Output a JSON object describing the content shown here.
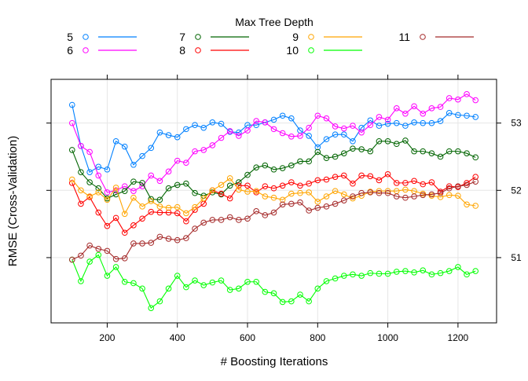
{
  "chart_data": {
    "type": "line",
    "title": "",
    "legend_title": "Max Tree Depth",
    "legend_placement": "top",
    "xlabel": "# Boosting Iterations",
    "ylabel": "RMSE (Cross-Validation)",
    "xlim": [
      40,
      1310
    ],
    "ylim": [
      50.03,
      53.65
    ],
    "x_ticks": [
      200,
      400,
      600,
      800,
      1000,
      1200
    ],
    "y_ticks": [
      51,
      52,
      53
    ],
    "grid": true,
    "x": [
      100,
      125,
      150,
      175,
      200,
      225,
      250,
      275,
      300,
      325,
      350,
      375,
      400,
      425,
      450,
      475,
      500,
      525,
      550,
      575,
      600,
      625,
      650,
      675,
      700,
      725,
      750,
      775,
      800,
      825,
      850,
      875,
      900,
      925,
      950,
      975,
      1000,
      1025,
      1050,
      1075,
      1100,
      1125,
      1150,
      1175,
      1200,
      1225,
      1250
    ],
    "series": [
      {
        "name": "5",
        "color": "#0080ff",
        "values": [
          53.27,
          52.66,
          52.27,
          52.35,
          52.31,
          52.73,
          52.65,
          52.38,
          52.51,
          52.63,
          52.86,
          52.82,
          52.79,
          52.91,
          52.97,
          52.93,
          53.01,
          52.99,
          52.87,
          52.86,
          52.97,
          52.97,
          53.01,
          53.05,
          53.11,
          53.07,
          52.89,
          52.81,
          52.64,
          52.76,
          52.83,
          52.83,
          52.73,
          52.93,
          53.04,
          52.96,
          52.99,
          53.0,
          52.96,
          53.01,
          53.0,
          53.0,
          53.03,
          53.15,
          53.12,
          53.11,
          53.09
        ]
      },
      {
        "name": "6",
        "color": "#ff00ff",
        "values": [
          53.0,
          52.66,
          52.57,
          52.22,
          51.97,
          52.0,
          52.06,
          51.99,
          52.06,
          52.22,
          52.14,
          52.28,
          52.44,
          52.41,
          52.58,
          52.6,
          52.67,
          52.78,
          52.88,
          52.81,
          52.89,
          53.03,
          53.01,
          52.91,
          52.85,
          52.8,
          52.81,
          52.93,
          53.11,
          53.07,
          52.95,
          52.92,
          52.96,
          52.86,
          52.97,
          53.09,
          53.05,
          53.22,
          53.14,
          53.25,
          53.14,
          53.22,
          53.24,
          53.37,
          53.35,
          53.43,
          53.34
        ]
      },
      {
        "name": "7",
        "color": "#006400",
        "values": [
          52.6,
          52.27,
          52.12,
          52.03,
          51.88,
          51.94,
          51.99,
          52.13,
          52.11,
          51.87,
          51.86,
          52.03,
          52.08,
          52.1,
          51.96,
          51.92,
          51.97,
          51.94,
          52.07,
          52.12,
          52.23,
          52.34,
          52.37,
          52.31,
          52.33,
          52.37,
          52.43,
          52.43,
          52.57,
          52.48,
          52.5,
          52.55,
          52.62,
          52.61,
          52.58,
          52.73,
          52.73,
          52.69,
          52.74,
          52.58,
          52.58,
          52.55,
          52.5,
          52.58,
          52.58,
          52.55,
          52.49
        ]
      },
      {
        "name": "8",
        "color": "#ff0000",
        "values": [
          52.11,
          51.8,
          51.9,
          51.67,
          51.47,
          51.59,
          51.37,
          51.48,
          51.58,
          51.68,
          51.67,
          51.67,
          51.66,
          51.54,
          51.71,
          51.8,
          52.0,
          51.95,
          51.88,
          52.07,
          52.07,
          51.97,
          52.06,
          52.03,
          52.07,
          52.12,
          52.07,
          52.1,
          52.15,
          52.16,
          52.2,
          52.22,
          52.1,
          52.22,
          52.21,
          52.15,
          52.24,
          52.11,
          52.11,
          52.14,
          52.09,
          52.12,
          51.98,
          52.06,
          52.05,
          52.11,
          52.2
        ]
      },
      {
        "name": "9",
        "color": "#ffa500",
        "values": [
          52.16,
          52.0,
          51.91,
          51.97,
          51.86,
          52.04,
          51.65,
          51.89,
          51.76,
          51.84,
          51.76,
          51.74,
          51.75,
          51.66,
          51.75,
          51.88,
          52.0,
          52.08,
          52.18,
          52.01,
          51.98,
          51.99,
          51.91,
          51.89,
          51.86,
          51.95,
          51.96,
          51.97,
          51.83,
          51.91,
          51.99,
          51.94,
          51.88,
          51.92,
          51.98,
          51.99,
          51.99,
          51.99,
          52.01,
          51.99,
          51.95,
          51.92,
          51.9,
          51.93,
          51.92,
          51.79,
          51.77
        ]
      },
      {
        "name": "10",
        "color": "#00ff00",
        "values": [
          50.97,
          50.65,
          50.94,
          51.04,
          50.73,
          50.86,
          50.64,
          50.62,
          50.54,
          50.25,
          50.35,
          50.54,
          50.73,
          50.56,
          50.66,
          50.59,
          50.63,
          50.66,
          50.52,
          50.54,
          50.64,
          50.64,
          50.49,
          50.47,
          50.34,
          50.35,
          50.45,
          50.35,
          50.54,
          50.65,
          50.69,
          50.73,
          50.75,
          50.73,
          50.77,
          50.76,
          50.76,
          50.79,
          50.8,
          50.78,
          50.81,
          50.75,
          50.77,
          50.8,
          50.86,
          50.75,
          50.8
        ]
      },
      {
        "name": "11",
        "color": "#a52a2a",
        "values": [
          50.97,
          51.03,
          51.18,
          51.13,
          51.1,
          50.98,
          50.99,
          51.21,
          51.21,
          51.22,
          51.31,
          51.28,
          51.26,
          51.29,
          51.43,
          51.52,
          51.56,
          51.56,
          51.6,
          51.56,
          51.58,
          51.69,
          51.63,
          51.67,
          51.79,
          51.8,
          51.82,
          51.7,
          51.74,
          51.76,
          51.8,
          51.85,
          51.91,
          51.96,
          51.97,
          51.96,
          51.96,
          51.91,
          51.89,
          51.91,
          51.93,
          51.94,
          51.96,
          52.03,
          52.06,
          52.08,
          52.13
        ]
      }
    ]
  }
}
